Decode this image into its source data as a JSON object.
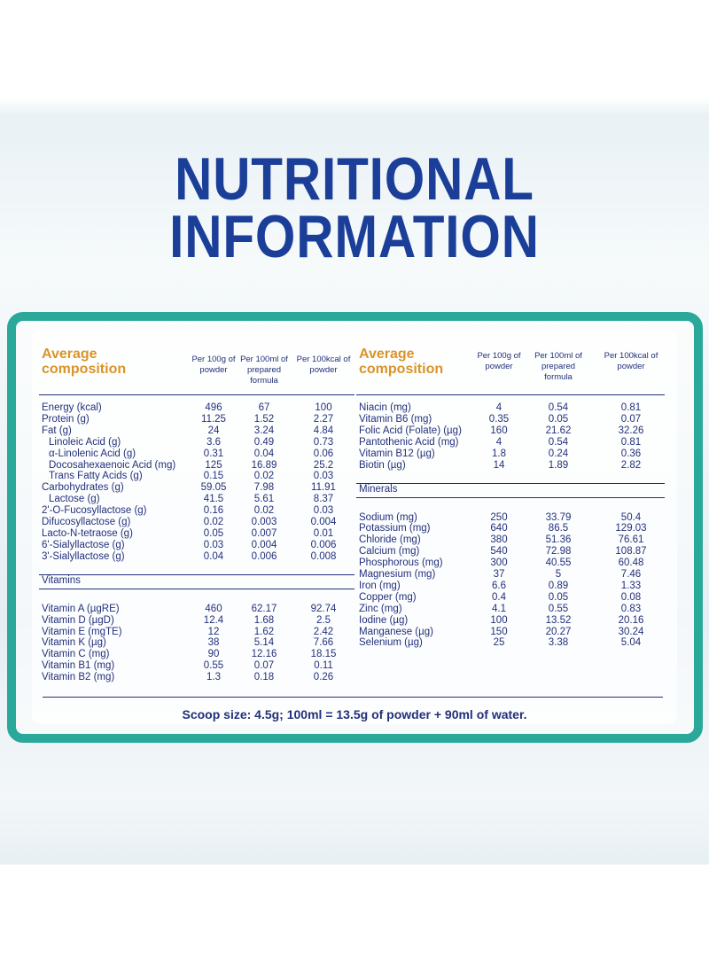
{
  "title": {
    "lines": [
      "NUTRITIONAL",
      "INFORMATION"
    ]
  },
  "left": {
    "header": {
      "label": "Average composition",
      "columns": [
        "Per 100g of powder",
        "Per 100ml of prepared formula",
        "Per 100kcal of powder"
      ]
    },
    "groups": [
      {
        "rows": [
          {
            "cells": [
              "Energy (kcal)",
              "496",
              "67",
              "100"
            ]
          },
          {
            "cells": [
              "Protein (g)",
              "11.25",
              "1.52",
              "2.27"
            ]
          },
          {
            "cells": [
              "Fat (g)",
              "24",
              "3.24",
              "4.84"
            ],
            "sub": [
              [
                "Linoleic Acid (g)",
                "3.6",
                "0.49",
                "0.73"
              ],
              [
                "α-Linolenic Acid (g)",
                "0.31",
                "0.04",
                "0.06"
              ],
              [
                "Docosahexaenoic Acid (mg)",
                "125",
                "16.89",
                "25.2"
              ],
              [
                "Trans Fatty Acids (g)",
                "0.15",
                "0.02",
                "0.03"
              ]
            ]
          },
          {
            "cells": [
              "Carbohydrates (g)",
              "59.05",
              "7.98",
              "11.91"
            ],
            "sub": [
              [
                "Lactose (g)",
                "41.5",
                "5.61",
                "8.37"
              ]
            ]
          },
          {
            "cells": [
              "2'-O-Fucosyllactose (g)",
              "0.16",
              "0.02",
              "0.03"
            ]
          },
          {
            "cells": [
              "Difucosyllactose (g)",
              "0.02",
              "0.003",
              "0.004"
            ]
          },
          {
            "cells": [
              "Lacto-N-tetraose (g)",
              "0.05",
              "0.007",
              "0.01"
            ]
          },
          {
            "cells": [
              "6'-Sialyllactose (g)",
              "0.03",
              "0.004",
              "0.006"
            ]
          },
          {
            "cells": [
              "3'-Sialyllactose (g)",
              "0.04",
              "0.006",
              "0.008"
            ]
          }
        ]
      },
      {
        "heading": "Vitamins",
        "rows": [
          {
            "cells": [
              "Vitamin A (µgRE)",
              "460",
              "62.17",
              "92.74"
            ]
          },
          {
            "cells": [
              "Vitamin D (µgD)",
              "12.4",
              "1.68",
              "2.5"
            ]
          },
          {
            "cells": [
              "Vitamin E (mgTE)",
              "12",
              "1.62",
              "2.42"
            ]
          },
          {
            "cells": [
              "Vitamin K (µg)",
              "38",
              "5.14",
              "7.66"
            ]
          },
          {
            "cells": [
              "Vitamin C (mg)",
              "90",
              "12.16",
              "18.15"
            ]
          },
          {
            "cells": [
              "Vitamin B1 (mg)",
              "0.55",
              "0.07",
              "0.11"
            ]
          },
          {
            "cells": [
              "Vitamin B2 (mg)",
              "1.3",
              "0.18",
              "0.26"
            ]
          }
        ]
      }
    ]
  },
  "right": {
    "header": {
      "label": "Average composition",
      "columns": [
        "Per 100g of powder",
        "Per 100ml of prepared formula",
        "Per 100kcal of powder"
      ]
    },
    "groups": [
      {
        "rows": [
          {
            "cells": [
              "Niacin (mg)",
              "4",
              "0.54",
              "0.81"
            ]
          },
          {
            "cells": [
              "Vitamin B6 (mg)",
              "0.35",
              "0.05",
              "0.07"
            ]
          },
          {
            "cells": [
              "Folic Acid (Folate) (µg)",
              "160",
              "21.62",
              "32.26"
            ]
          },
          {
            "cells": [
              "Pantothenic Acid (mg)",
              "4",
              "0.54",
              "0.81"
            ]
          },
          {
            "cells": [
              "Vitamin B12 (µg)",
              "1.8",
              "0.24",
              "0.36"
            ]
          },
          {
            "cells": [
              "Biotin (µg)",
              "14",
              "1.89",
              "2.82"
            ]
          }
        ]
      },
      {
        "heading": "Minerals",
        "rows": [
          {
            "cells": [
              "Sodium (mg)",
              "250",
              "33.79",
              "50.4"
            ]
          },
          {
            "cells": [
              "Potassium (mg)",
              "640",
              "86.5",
              "129.03"
            ]
          },
          {
            "cells": [
              "Chloride (mg)",
              "380",
              "51.36",
              "76.61"
            ]
          },
          {
            "cells": [
              "Calcium (mg)",
              "540",
              "72.98",
              "108.87"
            ]
          },
          {
            "cells": [
              "Phosphorous (mg)",
              "300",
              "40.55",
              "60.48"
            ]
          },
          {
            "cells": [
              "Magnesium (mg)",
              "37",
              "5",
              "7.46"
            ]
          },
          {
            "cells": [
              "Iron (mg)",
              "6.6",
              "0.89",
              "1.33"
            ]
          },
          {
            "cells": [
              "Copper (mg)",
              "0.4",
              "0.05",
              "0.08"
            ]
          },
          {
            "cells": [
              "Zinc (mg)",
              "4.1",
              "0.55",
              "0.83"
            ]
          },
          {
            "cells": [
              "Iodine (µg)",
              "100",
              "13.52",
              "20.16"
            ]
          },
          {
            "cells": [
              "Manganese (µg)",
              "150",
              "20.27",
              "30.24"
            ]
          },
          {
            "cells": [
              "Selenium (µg)",
              "25",
              "3.38",
              "5.04"
            ]
          }
        ]
      }
    ]
  },
  "footer": "Scoop size: 4.5g; 100ml = 13.5g of powder + 90ml of water."
}
